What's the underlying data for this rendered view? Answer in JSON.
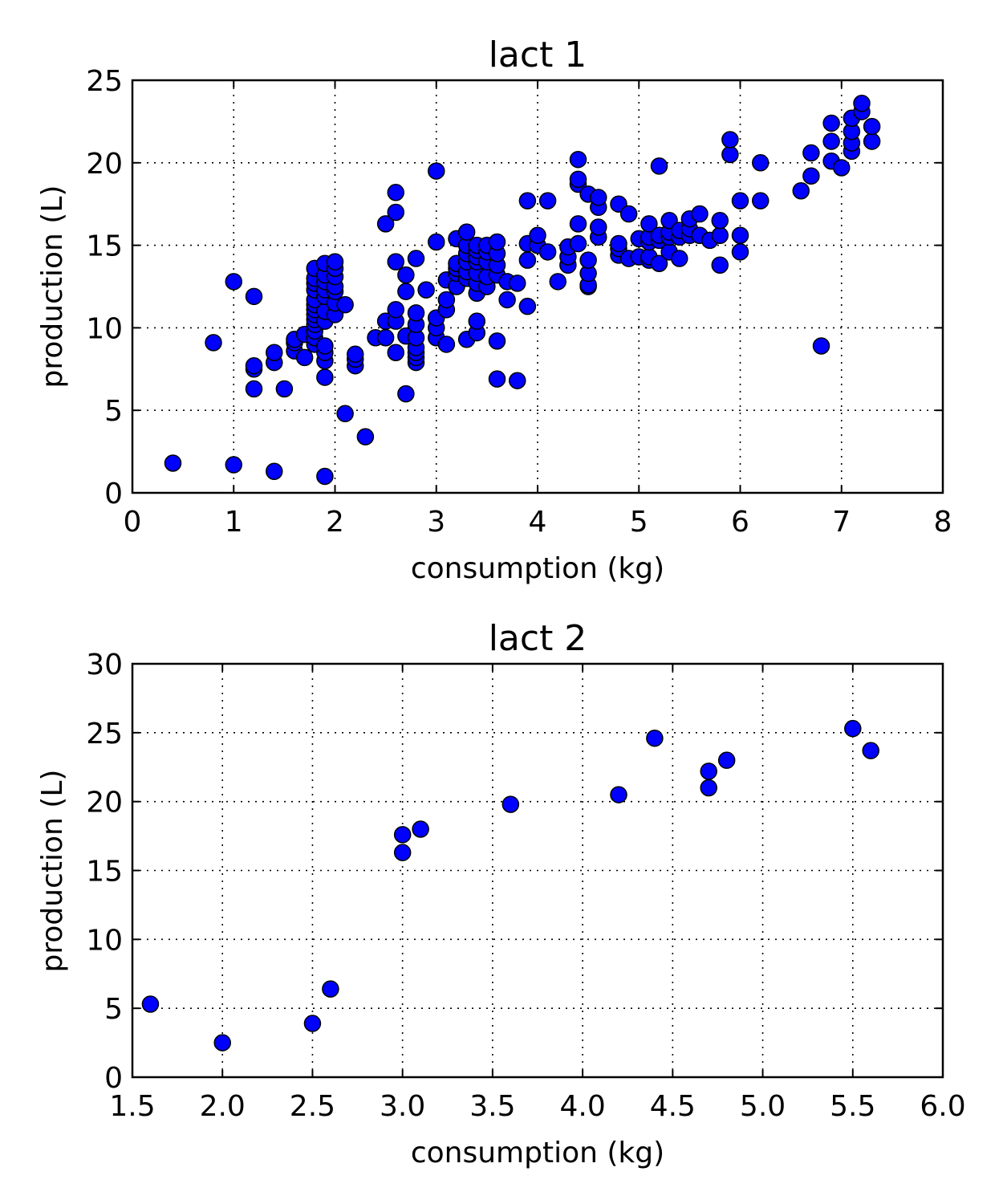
{
  "chart_data": [
    {
      "type": "scatter",
      "title": "lact 1",
      "xlabel": "consumption (kg)",
      "ylabel": "production (L)",
      "xlim": [
        0,
        8
      ],
      "ylim": [
        0,
        25
      ],
      "xticks": [
        "0",
        "1",
        "2",
        "3",
        "4",
        "5",
        "6",
        "7",
        "8"
      ],
      "yticks": [
        "0",
        "5",
        "10",
        "15",
        "20",
        "25"
      ],
      "grid": true,
      "marker_color": "#0000ff",
      "points": [
        [
          0.4,
          1.8
        ],
        [
          1.0,
          1.7
        ],
        [
          1.4,
          1.3
        ],
        [
          1.9,
          1.0
        ],
        [
          2.1,
          4.8
        ],
        [
          2.3,
          3.4
        ],
        [
          1.5,
          6.3
        ],
        [
          1.2,
          6.3
        ],
        [
          0.8,
          9.1
        ],
        [
          1.0,
          12.8
        ],
        [
          1.2,
          11.9
        ],
        [
          1.2,
          7.5
        ],
        [
          1.2,
          7.7
        ],
        [
          1.4,
          7.9
        ],
        [
          1.4,
          8.5
        ],
        [
          1.6,
          8.6
        ],
        [
          1.6,
          9.1
        ],
        [
          1.6,
          9.3
        ],
        [
          1.7,
          8.2
        ],
        [
          1.7,
          9.6
        ],
        [
          1.8,
          9.0
        ],
        [
          1.8,
          9.4
        ],
        [
          1.8,
          9.8
        ],
        [
          1.8,
          10.2
        ],
        [
          1.8,
          10.5
        ],
        [
          1.8,
          10.8
        ],
        [
          1.8,
          11.1
        ],
        [
          1.8,
          11.4
        ],
        [
          1.8,
          11.7
        ],
        [
          1.8,
          12.3
        ],
        [
          1.8,
          12.7
        ],
        [
          1.8,
          13.0
        ],
        [
          1.8,
          13.6
        ],
        [
          1.9,
          7.0
        ],
        [
          1.9,
          8.0
        ],
        [
          1.9,
          8.5
        ],
        [
          1.9,
          8.9
        ],
        [
          1.9,
          10.4
        ],
        [
          1.9,
          11.0
        ],
        [
          1.9,
          11.9
        ],
        [
          1.9,
          12.3
        ],
        [
          1.9,
          12.8
        ],
        [
          1.9,
          13.2
        ],
        [
          1.9,
          13.9
        ],
        [
          2.0,
          10.8
        ],
        [
          2.0,
          11.5
        ],
        [
          2.0,
          12.2
        ],
        [
          2.0,
          12.5
        ],
        [
          2.0,
          13.1
        ],
        [
          2.0,
          13.6
        ],
        [
          2.0,
          14.0
        ],
        [
          2.1,
          11.4
        ],
        [
          2.2,
          7.7
        ],
        [
          2.2,
          8.1
        ],
        [
          2.2,
          8.4
        ],
        [
          2.4,
          9.4
        ],
        [
          2.5,
          9.4
        ],
        [
          2.5,
          10.4
        ],
        [
          2.5,
          16.3
        ],
        [
          2.6,
          8.5
        ],
        [
          2.6,
          10.4
        ],
        [
          2.6,
          11.1
        ],
        [
          2.6,
          14.0
        ],
        [
          2.6,
          17.0
        ],
        [
          2.6,
          18.2
        ],
        [
          2.7,
          6.0
        ],
        [
          2.7,
          9.5
        ],
        [
          2.7,
          12.2
        ],
        [
          2.7,
          13.2
        ],
        [
          2.8,
          7.9
        ],
        [
          2.8,
          8.2
        ],
        [
          2.8,
          8.5
        ],
        [
          2.8,
          8.8
        ],
        [
          2.8,
          9.4
        ],
        [
          2.8,
          10.2
        ],
        [
          2.8,
          10.9
        ],
        [
          2.8,
          14.2
        ],
        [
          2.9,
          12.3
        ],
        [
          3.0,
          9.4
        ],
        [
          3.0,
          10.0
        ],
        [
          3.0,
          10.6
        ],
        [
          3.0,
          15.2
        ],
        [
          3.0,
          19.5
        ],
        [
          3.1,
          9.0
        ],
        [
          3.1,
          11.1
        ],
        [
          3.1,
          11.7
        ],
        [
          3.1,
          12.9
        ],
        [
          3.2,
          12.5
        ],
        [
          3.2,
          13.3
        ],
        [
          3.2,
          13.6
        ],
        [
          3.2,
          13.9
        ],
        [
          3.2,
          15.4
        ],
        [
          3.3,
          9.3
        ],
        [
          3.3,
          13.0
        ],
        [
          3.3,
          13.4
        ],
        [
          3.3,
          14.0
        ],
        [
          3.3,
          14.5
        ],
        [
          3.3,
          15.0
        ],
        [
          3.3,
          15.8
        ],
        [
          3.4,
          9.7
        ],
        [
          3.4,
          10.4
        ],
        [
          3.4,
          12.1
        ],
        [
          3.4,
          12.7
        ],
        [
          3.4,
          13.3
        ],
        [
          3.4,
          14.0
        ],
        [
          3.4,
          14.3
        ],
        [
          3.4,
          14.7
        ],
        [
          3.4,
          15.0
        ],
        [
          3.5,
          12.5
        ],
        [
          3.5,
          13.1
        ],
        [
          3.5,
          14.0
        ],
        [
          3.5,
          14.6
        ],
        [
          3.5,
          15.0
        ],
        [
          3.6,
          6.9
        ],
        [
          3.6,
          9.2
        ],
        [
          3.6,
          13.2
        ],
        [
          3.6,
          13.8
        ],
        [
          3.6,
          14.5
        ],
        [
          3.6,
          15.2
        ],
        [
          3.7,
          11.7
        ],
        [
          3.7,
          12.8
        ],
        [
          3.8,
          6.8
        ],
        [
          3.8,
          12.7
        ],
        [
          3.9,
          11.3
        ],
        [
          3.9,
          14.1
        ],
        [
          3.9,
          15.1
        ],
        [
          3.9,
          17.7
        ],
        [
          4.0,
          15.0
        ],
        [
          4.0,
          15.6
        ],
        [
          4.1,
          14.6
        ],
        [
          4.1,
          17.7
        ],
        [
          4.2,
          12.8
        ],
        [
          4.3,
          13.8
        ],
        [
          4.3,
          14.3
        ],
        [
          4.3,
          14.9
        ],
        [
          4.4,
          15.1
        ],
        [
          4.4,
          16.3
        ],
        [
          4.4,
          18.7
        ],
        [
          4.4,
          19.0
        ],
        [
          4.4,
          20.2
        ],
        [
          4.5,
          12.5
        ],
        [
          4.5,
          12.6
        ],
        [
          4.5,
          13.3
        ],
        [
          4.5,
          14.1
        ],
        [
          4.5,
          18.1
        ],
        [
          4.6,
          15.5
        ],
        [
          4.6,
          16.1
        ],
        [
          4.6,
          17.3
        ],
        [
          4.6,
          17.9
        ],
        [
          4.8,
          14.4
        ],
        [
          4.8,
          14.8
        ],
        [
          4.8,
          15.1
        ],
        [
          4.8,
          17.5
        ],
        [
          4.9,
          14.2
        ],
        [
          4.9,
          16.9
        ],
        [
          5.0,
          14.3
        ],
        [
          5.0,
          15.4
        ],
        [
          5.1,
          14.1
        ],
        [
          5.1,
          14.3
        ],
        [
          5.1,
          15.2
        ],
        [
          5.1,
          15.5
        ],
        [
          5.1,
          16.3
        ],
        [
          5.2,
          13.9
        ],
        [
          5.2,
          15.3
        ],
        [
          5.2,
          15.6
        ],
        [
          5.2,
          19.8
        ],
        [
          5.3,
          14.6
        ],
        [
          5.3,
          15.5
        ],
        [
          5.3,
          15.8
        ],
        [
          5.3,
          16.5
        ],
        [
          5.4,
          14.2
        ],
        [
          5.4,
          15.5
        ],
        [
          5.4,
          15.9
        ],
        [
          5.5,
          15.6
        ],
        [
          5.5,
          16.0
        ],
        [
          5.5,
          16.6
        ],
        [
          5.6,
          15.6
        ],
        [
          5.6,
          16.9
        ],
        [
          5.7,
          15.3
        ],
        [
          5.8,
          13.8
        ],
        [
          5.8,
          15.6
        ],
        [
          5.8,
          16.5
        ],
        [
          5.9,
          20.5
        ],
        [
          5.9,
          21.4
        ],
        [
          6.0,
          14.6
        ],
        [
          6.0,
          15.6
        ],
        [
          6.0,
          17.7
        ],
        [
          6.2,
          17.7
        ],
        [
          6.2,
          20.0
        ],
        [
          6.6,
          18.3
        ],
        [
          6.7,
          19.2
        ],
        [
          6.7,
          20.6
        ],
        [
          6.8,
          8.9
        ],
        [
          6.9,
          20.1
        ],
        [
          6.9,
          21.3
        ],
        [
          6.9,
          22.4
        ],
        [
          7.0,
          19.7
        ],
        [
          7.1,
          20.7
        ],
        [
          7.1,
          21.2
        ],
        [
          7.1,
          21.9
        ],
        [
          7.1,
          22.7
        ],
        [
          7.2,
          23.1
        ],
        [
          7.2,
          23.6
        ],
        [
          7.3,
          21.3
        ],
        [
          7.3,
          22.2
        ]
      ]
    },
    {
      "type": "scatter",
      "title": "lact 2",
      "xlabel": "consumption (kg)",
      "ylabel": "production (L)",
      "xlim": [
        1.5,
        6.0
      ],
      "ylim": [
        0,
        30
      ],
      "xticks": [
        "1.5",
        "2.0",
        "2.5",
        "3.0",
        "3.5",
        "4.0",
        "4.5",
        "5.0",
        "5.5",
        "6.0"
      ],
      "yticks": [
        "0",
        "5",
        "10",
        "15",
        "20",
        "25",
        "30"
      ],
      "grid": true,
      "marker_color": "#0000ff",
      "points": [
        [
          1.6,
          5.3
        ],
        [
          2.0,
          2.5
        ],
        [
          2.5,
          3.9
        ],
        [
          2.6,
          6.4
        ],
        [
          3.0,
          16.3
        ],
        [
          3.0,
          17.6
        ],
        [
          3.1,
          18.0
        ],
        [
          3.6,
          19.8
        ],
        [
          4.2,
          20.5
        ],
        [
          4.4,
          24.6
        ],
        [
          4.7,
          21.0
        ],
        [
          4.7,
          22.2
        ],
        [
          4.8,
          23.0
        ],
        [
          5.5,
          25.3
        ],
        [
          5.6,
          23.7
        ]
      ]
    }
  ]
}
